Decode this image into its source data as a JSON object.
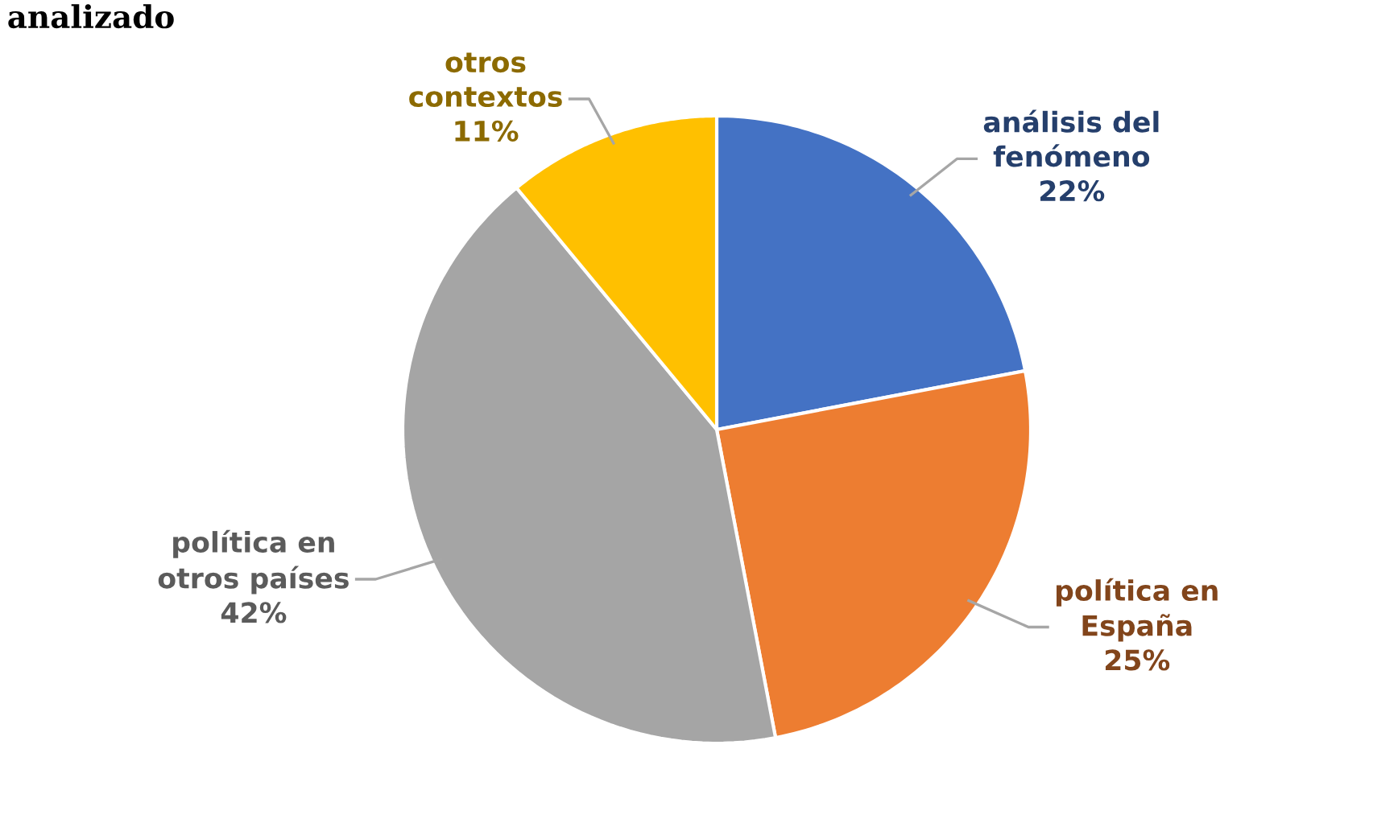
{
  "chart_data": {
    "type": "pie",
    "title": "analizado",
    "categories": [
      "análisis del\nfenómeno",
      "política en\nEspaña",
      "política en\notros países",
      "otros\ncontextos"
    ],
    "values": [
      22,
      25,
      42,
      11
    ],
    "colors": [
      "#4472c4",
      "#ed7d31",
      "#a5a5a5",
      "#ffc000"
    ],
    "value_labels": [
      "22%",
      "25%",
      "42%",
      "11%"
    ]
  }
}
